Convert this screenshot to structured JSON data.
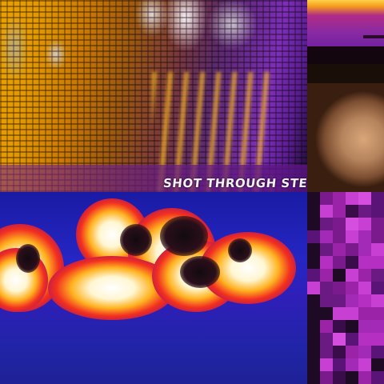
{
  "tiles": {
    "top_left": {
      "caption": "SHOT THROUGH STE"
    }
  },
  "colors": {
    "thermal_yellow": "#e7a300",
    "thermal_purple": "#7d2fb6",
    "thermal_blue": "#2526c4",
    "thermal_magenta": "#c12fd0",
    "hot_white": "#ffffff",
    "hot_red": "#f23020"
  }
}
